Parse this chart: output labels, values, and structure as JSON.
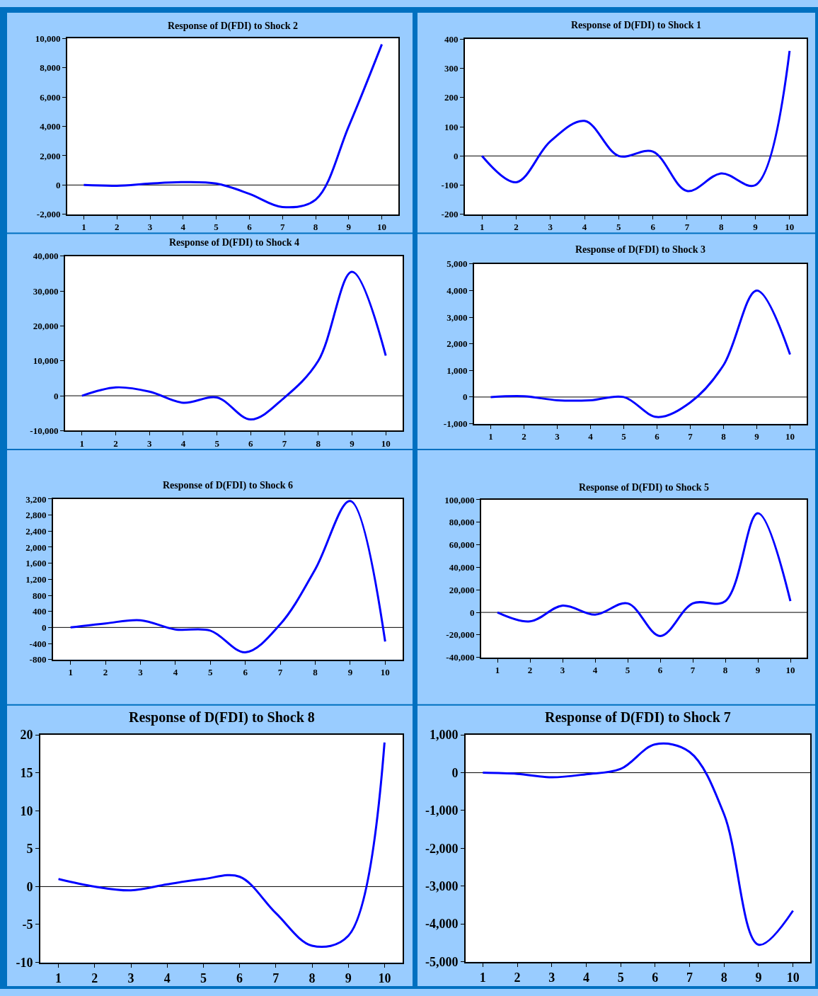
{
  "chart_data": [
    {
      "type": "line",
      "title": "Response of D(FDI) to Shock 2",
      "x": [
        1,
        2,
        3,
        4,
        5,
        6,
        7,
        8,
        9,
        10
      ],
      "values": [
        0,
        -50,
        100,
        200,
        100,
        -600,
        -1500,
        -1000,
        4000,
        9600
      ],
      "color": "#0000ff",
      "xlim": [
        0.5,
        10.5
      ],
      "xticks": [
        1,
        2,
        3,
        4,
        5,
        6,
        7,
        8,
        9,
        10
      ],
      "ylim": [
        -2000,
        10000
      ],
      "yticks": [
        {
          "value": -2000,
          "label": "-2,000"
        },
        0,
        {
          "value": 2000,
          "label": "2,000"
        },
        {
          "value": 4000,
          "label": "4,000"
        },
        {
          "value": 6000,
          "label": "6,000"
        },
        {
          "value": 8000,
          "label": "8,000"
        },
        {
          "value": 10000,
          "label": "10,000"
        }
      ],
      "ref_lines": [
        {
          "axis": "y",
          "value": 0,
          "color": "#000000"
        }
      ]
    },
    {
      "type": "line",
      "title": "Response of D(FDI) to Shock 1",
      "x": [
        1,
        2,
        3,
        4,
        5,
        6,
        7,
        8,
        9,
        10
      ],
      "values": [
        0,
        -90,
        50,
        120,
        0,
        15,
        -120,
        -60,
        -100,
        360
      ],
      "color": "#0000ff",
      "xlim": [
        0.5,
        10.5
      ],
      "xticks": [
        1,
        2,
        3,
        4,
        5,
        6,
        7,
        8,
        9,
        10
      ],
      "ylim": [
        -200,
        400
      ],
      "yticks": [
        -200,
        -100,
        0,
        100,
        200,
        300,
        400
      ],
      "ref_lines": [
        {
          "axis": "y",
          "value": 0,
          "color": "#000000"
        }
      ]
    },
    {
      "type": "line",
      "title": "Response of D(FDI) to Shock 4",
      "x": [
        1,
        2,
        3,
        4,
        5,
        6,
        7,
        8,
        9,
        10
      ],
      "values": [
        0,
        2400,
        1200,
        -2000,
        -500,
        -6800,
        -500,
        10000,
        35500,
        11500
      ],
      "color": "#0000ff",
      "xlim": [
        0.5,
        10.5
      ],
      "xticks": [
        1,
        2,
        3,
        4,
        5,
        6,
        7,
        8,
        9,
        10
      ],
      "ylim": [
        -10000,
        40000
      ],
      "yticks": [
        {
          "value": -10000,
          "label": "-10,000"
        },
        0,
        {
          "value": 10000,
          "label": "10,000"
        },
        {
          "value": 20000,
          "label": "20,000"
        },
        {
          "value": 30000,
          "label": "30,000"
        },
        {
          "value": 40000,
          "label": "40,000"
        }
      ],
      "ref_lines": [
        {
          "axis": "y",
          "value": 0,
          "color": "#000000"
        }
      ]
    },
    {
      "type": "line",
      "title": "Response of D(FDI) to Shock 3",
      "x": [
        1,
        2,
        3,
        4,
        5,
        6,
        7,
        8,
        9,
        10
      ],
      "values": [
        0,
        30,
        -120,
        -120,
        0,
        -750,
        -200,
        1200,
        4000,
        1600
      ],
      "color": "#0000ff",
      "xlim": [
        0.5,
        10.5
      ],
      "xticks": [
        1,
        2,
        3,
        4,
        5,
        6,
        7,
        8,
        9,
        10
      ],
      "ylim": [
        -1000,
        5000
      ],
      "yticks": [
        {
          "value": -1000,
          "label": "-1,000"
        },
        0,
        {
          "value": 1000,
          "label": "1,000"
        },
        {
          "value": 2000,
          "label": "2,000"
        },
        {
          "value": 3000,
          "label": "3,000"
        },
        {
          "value": 4000,
          "label": "4,000"
        },
        {
          "value": 5000,
          "label": "5,000"
        }
      ],
      "ref_lines": [
        {
          "axis": "y",
          "value": 0,
          "color": "#000000"
        }
      ]
    },
    {
      "type": "line",
      "title": "Response of D(FDI) to Shock 6",
      "x": [
        1,
        2,
        3,
        4,
        5,
        6,
        7,
        8,
        9,
        10
      ],
      "values": [
        0,
        100,
        180,
        -50,
        -80,
        -620,
        80,
        1450,
        3150,
        -350
      ],
      "color": "#0000ff",
      "xlim": [
        0.5,
        10.5
      ],
      "xticks": [
        1,
        2,
        3,
        4,
        5,
        6,
        7,
        8,
        9,
        10
      ],
      "ylim": [
        -800,
        3200
      ],
      "yticks": [
        -800,
        -400,
        0,
        400,
        800,
        {
          "value": 1200,
          "label": "1,200"
        },
        {
          "value": 1600,
          "label": "1,600"
        },
        {
          "value": 2000,
          "label": "2,000"
        },
        {
          "value": 2400,
          "label": "2,400"
        },
        {
          "value": 2800,
          "label": "2,800"
        },
        {
          "value": 3200,
          "label": "3,200"
        }
      ],
      "ref_lines": [
        {
          "axis": "y",
          "value": 0,
          "color": "#000000"
        }
      ]
    },
    {
      "type": "line",
      "title": "Response of D(FDI) to Shock 5",
      "x": [
        1,
        2,
        3,
        4,
        5,
        6,
        7,
        8,
        9,
        10
      ],
      "values": [
        0,
        -8000,
        6000,
        -2000,
        8000,
        -21000,
        8000,
        10000,
        88000,
        10000
      ],
      "color": "#0000ff",
      "xlim": [
        0.5,
        10.5
      ],
      "xticks": [
        1,
        2,
        3,
        4,
        5,
        6,
        7,
        8,
        9,
        10
      ],
      "ylim": [
        -40000,
        100000
      ],
      "yticks": [
        {
          "value": -40000,
          "label": "-40,000"
        },
        {
          "value": -20000,
          "label": "-20,000"
        },
        0,
        {
          "value": 20000,
          "label": "20,000"
        },
        {
          "value": 40000,
          "label": "40,000"
        },
        {
          "value": 60000,
          "label": "60,000"
        },
        {
          "value": 80000,
          "label": "80,000"
        },
        {
          "value": 100000,
          "label": "100,000"
        }
      ],
      "ref_lines": [
        {
          "axis": "y",
          "value": 0,
          "color": "#000000"
        }
      ]
    },
    {
      "type": "line",
      "title": "Response of D(FDI) to Shock 8",
      "x": [
        1,
        2,
        3,
        4,
        5,
        6,
        7,
        8,
        9,
        10
      ],
      "values": [
        1,
        0,
        -0.5,
        0.3,
        1,
        1.3,
        -3.5,
        -7.8,
        -6.5,
        19
      ],
      "color": "#0000ff",
      "xlim": [
        0.5,
        10.5
      ],
      "xticks": [
        1,
        2,
        3,
        4,
        5,
        6,
        7,
        8,
        9,
        10
      ],
      "ylim": [
        -10,
        20
      ],
      "yticks": [
        -10,
        -5,
        0,
        5,
        10,
        15,
        20
      ],
      "ref_lines": [
        {
          "axis": "y",
          "value": 0,
          "color": "#000000"
        }
      ]
    },
    {
      "type": "line",
      "title": "Response of D(FDI) to Shock 7",
      "x": [
        1,
        2,
        3,
        4,
        5,
        6,
        7,
        8,
        9,
        10
      ],
      "values": [
        0,
        -30,
        -120,
        -40,
        100,
        750,
        550,
        -1100,
        -4550,
        -3650
      ],
      "color": "#0000ff",
      "xlim": [
        0.5,
        10.5
      ],
      "xticks": [
        1,
        2,
        3,
        4,
        5,
        6,
        7,
        8,
        9,
        10
      ],
      "ylim": [
        -5000,
        1000
      ],
      "yticks": [
        {
          "value": -5000,
          "label": "-5,000"
        },
        {
          "value": -4000,
          "label": "-4,000"
        },
        {
          "value": -3000,
          "label": "-3,000"
        },
        {
          "value": -2000,
          "label": "-2,000"
        },
        {
          "value": -1000,
          "label": "-1,000"
        },
        0,
        {
          "value": 1000,
          "label": "1,000"
        }
      ],
      "ref_lines": [
        {
          "axis": "y",
          "value": 0,
          "color": "#000000"
        }
      ]
    }
  ]
}
